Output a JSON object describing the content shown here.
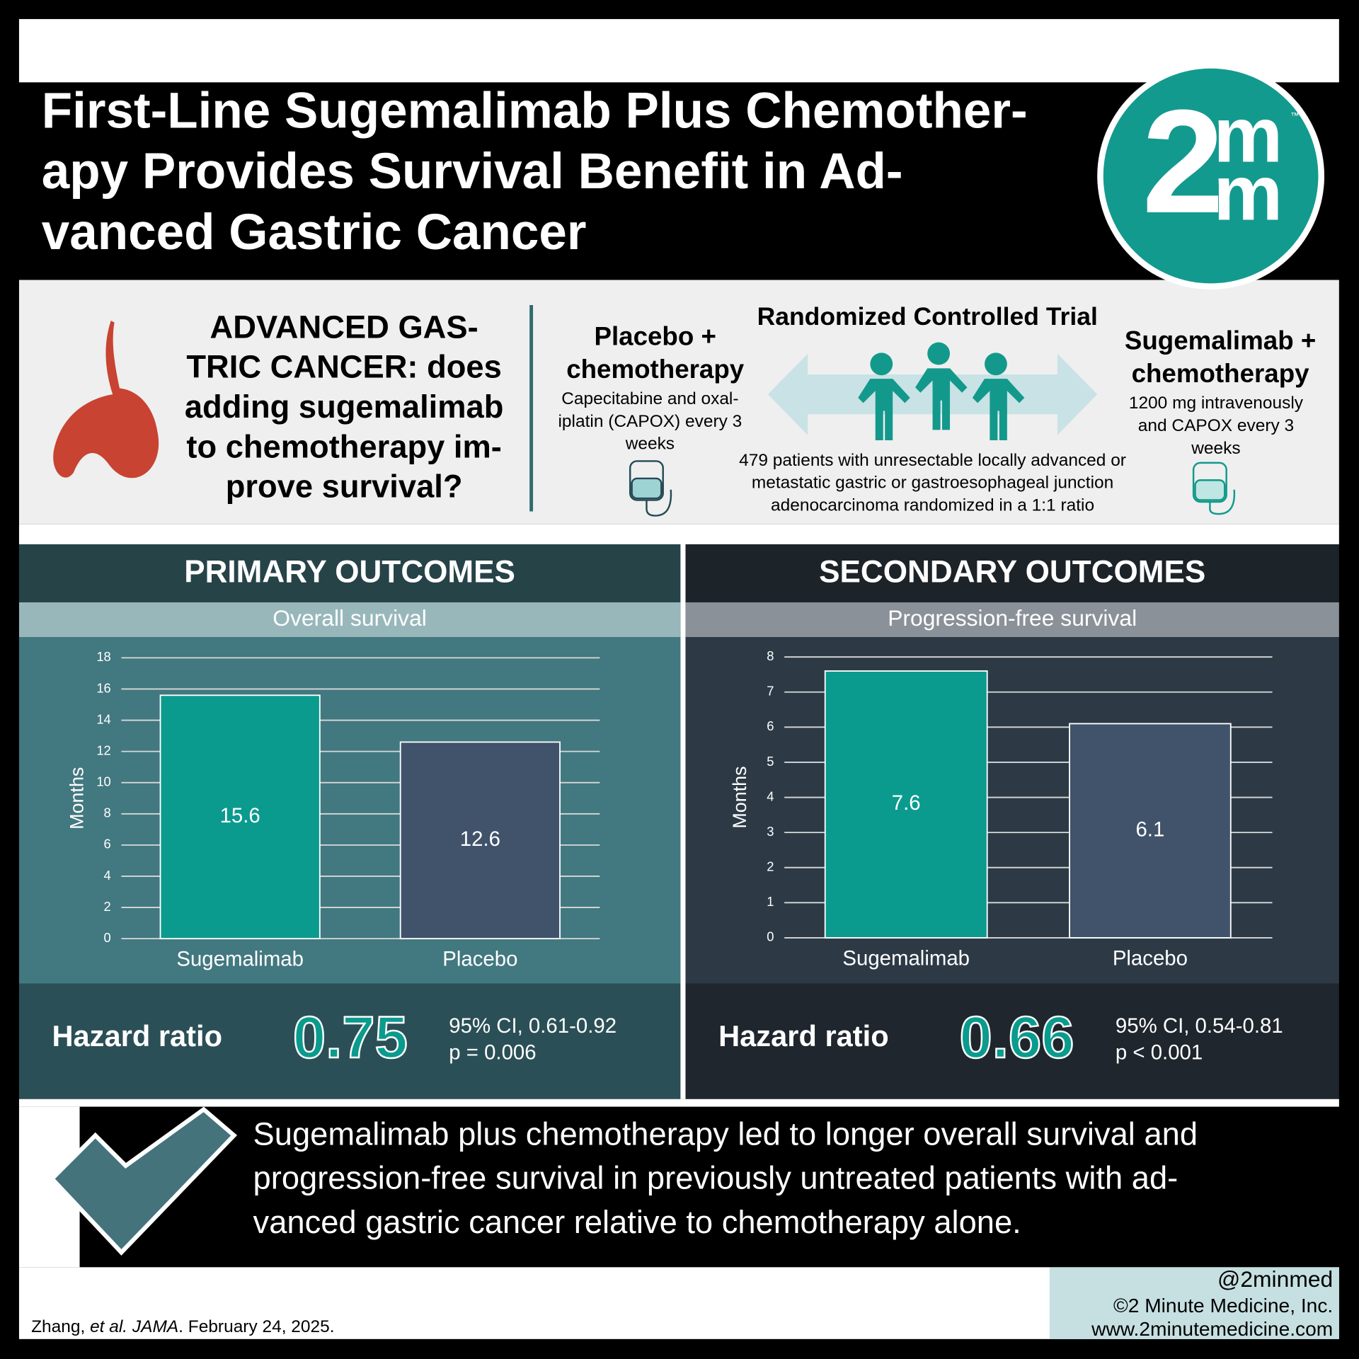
{
  "header": {
    "title_lines": [
      "First-Line Sugemalimab Plus Chemother-",
      "apy Provides Survival Benefit in Ad-",
      "vanced Gastric Cancer"
    ],
    "logo": {
      "number": "2",
      "letters": [
        "m",
        "m"
      ],
      "tm": "™"
    }
  },
  "question_lines": [
    "ADVANCED GAS-",
    "TRIC CANCER: does",
    "adding sugemalimab",
    "to chemotherapy im-",
    "prove survival?"
  ],
  "trial": {
    "heading": "Randomized Controlled Trial",
    "control": {
      "name_lines": [
        "Placebo +",
        "chemotherapy"
      ],
      "detail_lines": [
        "Capecitabine and oxal-",
        "iplatin (CAPOX) every 3",
        "weeks"
      ]
    },
    "experimental": {
      "name_lines": [
        "Sugemalimab +",
        "chemotherapy"
      ],
      "detail_lines": [
        "1200 mg intravenously",
        "and CAPOX every 3",
        "weeks"
      ]
    },
    "population_lines": [
      "479 patients with unresectable locally advanced or",
      "metastatic gastric or gastroesophageal junction",
      "adenocarcinoma randomized in a 1:1 ratio"
    ]
  },
  "chart_data": [
    {
      "type": "bar",
      "section": "PRIMARY OUTCOMES",
      "title": "Overall survival",
      "y_label": "Months",
      "categories": [
        "Sugemalimab",
        "Placebo"
      ],
      "values": [
        15.6,
        12.6
      ],
      "colors": [
        "#0a9b8e",
        "#41536b"
      ],
      "ylim": [
        0,
        18
      ],
      "yticks": [
        0,
        2,
        4,
        6,
        8,
        10,
        12,
        14,
        16,
        18
      ],
      "grid": true,
      "hazard": {
        "label": "Hazard ratio",
        "value": 0.75,
        "ci": "95% CI, 0.61-0.92",
        "p": "p = 0.006"
      }
    },
    {
      "type": "bar",
      "section": "SECONDARY OUTCOMES",
      "title": "Progression-free survival",
      "y_label": "Months",
      "categories": [
        "Sugemalimab",
        "Placebo"
      ],
      "values": [
        7.6,
        6.1
      ],
      "colors": [
        "#0a9b8e",
        "#41536b"
      ],
      "ylim": [
        0,
        8
      ],
      "yticks": [
        0,
        1,
        2,
        3,
        4,
        5,
        6,
        7,
        8
      ],
      "grid": true,
      "hazard": {
        "label": "Hazard ratio",
        "value": 0.66,
        "ci": "95% CI, 0.54-0.81",
        "p": "p < 0.001"
      }
    }
  ],
  "conclusion_lines": [
    "Sugemalimab plus chemotherapy led to longer overall survival and",
    "progression-free survival in previously untreated patients with ad-",
    "vanced gastric cancer relative to chemotherapy alone."
  ],
  "footer": {
    "handle": "@2minmed",
    "copyright": "©2 Minute Medicine, Inc.",
    "website": "www.2minutemedicine.com",
    "citation": [
      "Zhang, ",
      "et al. JAMA",
      ". February 24, 2025."
    ]
  }
}
